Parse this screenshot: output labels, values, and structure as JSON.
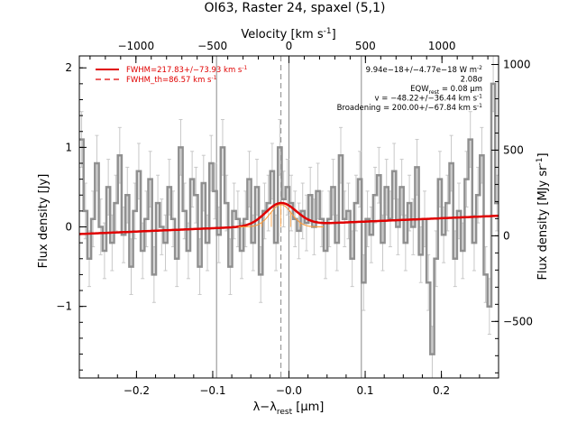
{
  "chart_data": {
    "type": "line",
    "title": "OI63, Raster 24, spaxel (5,1)",
    "xlabel": "λ−λ",
    "xlabel_sub": "rest",
    "xlabel_unit": "[μm]",
    "ylabel": "Flux density [Jy]",
    "top_xlabel": "Velocity [km s",
    "top_xlabel_sup": "-1",
    "top_xlabel_close": "]",
    "right_ylabel": "Flux density [MJy sr",
    "right_ylabel_sup": "-1",
    "right_ylabel_close": "]",
    "xlim": [
      -0.275,
      0.275
    ],
    "ylim": [
      -1.9,
      2.15
    ],
    "top_xlim": [
      -1370,
      1370
    ],
    "right_ylim": [
      -830,
      1050
    ],
    "x_ticks": [
      -0.2,
      -0.1,
      0.0,
      0.1,
      0.2
    ],
    "x_tick_labels": [
      "−0.2",
      "−0.1",
      "−0.0",
      "0.1",
      "0.2"
    ],
    "y_ticks": [
      -1,
      0,
      1,
      2
    ],
    "y_tick_labels": [
      "−1",
      "0",
      "1",
      "2"
    ],
    "top_ticks": [
      -1000,
      -500,
      0,
      500,
      1000
    ],
    "top_tick_labels": [
      "−1000",
      "−500",
      "0",
      "500",
      "1000"
    ],
    "right_ticks": [
      -500,
      0,
      500,
      1000
    ],
    "right_tick_labels": [
      "−500",
      "0",
      "500",
      "1000"
    ],
    "vertical_lines_solid": [
      -0.095,
      0.0,
      0.095
    ],
    "vertical_line_dashed": -0.0105,
    "legend": {
      "placement": "top-left",
      "entries": [
        {
          "label": "FWHM=217.83+/−73.93 km s",
          "sup": "-1",
          "style": "solid",
          "color": "#e00000"
        },
        {
          "label": "FWHM_th=86.57 km s",
          "sup": "-1",
          "style": "dashed",
          "color": "#e00000"
        }
      ]
    },
    "annotations": [
      {
        "text": "9.94e−18+/−4.77e−18 W m",
        "sup": "-2"
      },
      {
        "text": "2.08σ"
      },
      {
        "text": "EQW",
        "sub": "rest",
        "tail": " = 0.08 μm"
      },
      {
        "text": "v = −48.22+/−36.44 km s",
        "sup": "-1"
      },
      {
        "text": "Broadening = 200.00+/−67.84 km s",
        "sup": "-1"
      }
    ],
    "series": [
      {
        "style": "steps",
        "color": "#909090",
        "x": [
          -0.272,
          -0.267,
          -0.262,
          -0.257,
          -0.252,
          -0.247,
          -0.242,
          -0.237,
          -0.232,
          -0.227,
          -0.222,
          -0.217,
          -0.212,
          -0.207,
          -0.202,
          -0.197,
          -0.192,
          -0.187,
          -0.182,
          -0.177,
          -0.172,
          -0.167,
          -0.162,
          -0.157,
          -0.152,
          -0.147,
          -0.142,
          -0.137,
          -0.132,
          -0.127,
          -0.122,
          -0.117,
          -0.112,
          -0.107,
          -0.102,
          -0.097,
          -0.092,
          -0.087,
          -0.082,
          -0.077,
          -0.072,
          -0.067,
          -0.062,
          -0.057,
          -0.052,
          -0.047,
          -0.042,
          -0.037,
          -0.032,
          -0.027,
          -0.022,
          -0.017,
          -0.012,
          -0.007,
          -0.002,
          0.003,
          0.008,
          0.013,
          0.018,
          0.023,
          0.028,
          0.033,
          0.038,
          0.043,
          0.048,
          0.053,
          0.058,
          0.063,
          0.068,
          0.073,
          0.078,
          0.083,
          0.088,
          0.093,
          0.098,
          0.103,
          0.108,
          0.113,
          0.118,
          0.123,
          0.128,
          0.133,
          0.138,
          0.143,
          0.148,
          0.153,
          0.158,
          0.163,
          0.168,
          0.173,
          0.178,
          0.183,
          0.188,
          0.193,
          0.198,
          0.203,
          0.208,
          0.213,
          0.218,
          0.223,
          0.228,
          0.233,
          0.238,
          0.243,
          0.248,
          0.253,
          0.258,
          0.263,
          0.268,
          0.273
        ],
        "y": [
          1.1,
          0.2,
          -0.4,
          0.1,
          0.8,
          0.0,
          -0.3,
          0.5,
          -0.2,
          0.3,
          0.9,
          -0.1,
          0.4,
          -0.5,
          0.2,
          0.7,
          -0.3,
          0.1,
          0.6,
          -0.6,
          0.3,
          0.0,
          -0.2,
          0.5,
          0.1,
          -0.4,
          1.0,
          0.2,
          -0.3,
          0.6,
          0.4,
          -0.5,
          0.55,
          -0.2,
          0.8,
          0.45,
          -0.1,
          1.0,
          0.3,
          -0.5,
          0.2,
          0.1,
          -0.3,
          0.1,
          0.6,
          -0.2,
          0.5,
          -0.6,
          0.2,
          0.3,
          0.7,
          -0.2,
          1.0,
          0.35,
          0.5,
          0.3,
          0.1,
          -0.05,
          0.2,
          0.05,
          0.4,
          0.0,
          0.45,
          0.1,
          -0.3,
          0.1,
          0.5,
          -0.2,
          0.9,
          0.1,
          0.2,
          -0.4,
          0.3,
          0.6,
          -0.7,
          0.1,
          -0.1,
          0.4,
          0.65,
          -0.2,
          0.5,
          0.1,
          0.7,
          0.0,
          0.5,
          -0.2,
          0.3,
          0.0,
          0.75,
          -0.35,
          0.1,
          -0.7,
          -1.6,
          -0.4,
          0.6,
          -0.1,
          0.3,
          0.8,
          -0.4,
          0.2,
          -0.3,
          0.6,
          1.1,
          -0.2,
          0.4,
          0.9,
          -0.6,
          -1.0,
          1.8,
          0.3
        ],
        "yerr": 0.35
      },
      {
        "style": "line",
        "name": "fit",
        "color": "#e00000",
        "model": "gaussian+linear",
        "baseline_left": -0.09,
        "baseline_right": 0.14,
        "center": -0.0105,
        "amplitude": 0.28,
        "sigma": 0.02
      },
      {
        "style": "line",
        "name": "component",
        "color": "#ff9933",
        "model": "gaussian",
        "center": -0.0105,
        "amplitude": 0.28,
        "sigma": 0.014
      }
    ]
  }
}
